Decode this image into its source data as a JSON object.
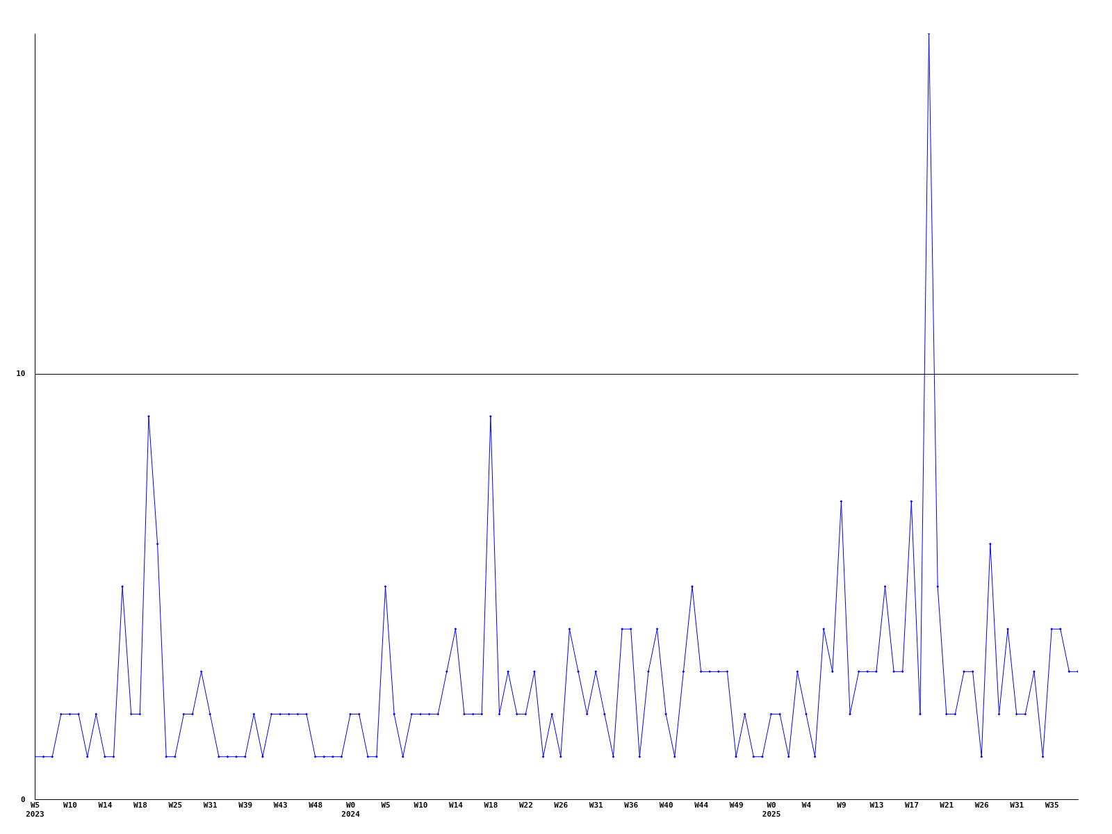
{
  "chart_data": {
    "type": "line",
    "categories": [
      "W5\n2023",
      null,
      null,
      null,
      "W10",
      null,
      null,
      null,
      "W14",
      null,
      null,
      null,
      "W18",
      null,
      null,
      null,
      "W25",
      null,
      null,
      null,
      "W31",
      null,
      null,
      null,
      "W39",
      null,
      null,
      null,
      "W43",
      null,
      null,
      null,
      "W48",
      null,
      null,
      null,
      "W0\n2024",
      null,
      null,
      null,
      "W5",
      null,
      null,
      null,
      "W10",
      null,
      null,
      null,
      "W14",
      null,
      null,
      null,
      "W18",
      null,
      null,
      null,
      "W22",
      null,
      null,
      null,
      "W26",
      null,
      null,
      null,
      "W31",
      null,
      null,
      null,
      "W36",
      null,
      null,
      null,
      "W40",
      null,
      null,
      null,
      "W44",
      null,
      null,
      null,
      "W49",
      null,
      null,
      null,
      "W0\n2025",
      null,
      null,
      null,
      "W4",
      null,
      null,
      null,
      "W9",
      null,
      null,
      null,
      "W13",
      null,
      null,
      null,
      "W17",
      null,
      null,
      null,
      "W21",
      null,
      null,
      null,
      "W26",
      null,
      null,
      null,
      "W31",
      null,
      null,
      null,
      "W35",
      null,
      null,
      null
    ],
    "series": [
      {
        "color": "#0000ff",
        "values": [
          1,
          1,
          1,
          2,
          2,
          2,
          1,
          2,
          1,
          1,
          5,
          2,
          2,
          9,
          6,
          1,
          1,
          2,
          2,
          3,
          2,
          1,
          1,
          1,
          1,
          2,
          1,
          2,
          2,
          2,
          2,
          2,
          1,
          1,
          1,
          1,
          2,
          2,
          1,
          1,
          5,
          2,
          1,
          2,
          2,
          2,
          2,
          3,
          4,
          2,
          2,
          2,
          9,
          2,
          3,
          2,
          2,
          3,
          1,
          2,
          1,
          4,
          3,
          2,
          3,
          2,
          1,
          4,
          4,
          1,
          3,
          4,
          2,
          1,
          3,
          5,
          3,
          3,
          3,
          3,
          1,
          2,
          1,
          1,
          2,
          2,
          1,
          3,
          2,
          1,
          4,
          3,
          7,
          2,
          3,
          3,
          3,
          5,
          3,
          3,
          7,
          2,
          18,
          5,
          2,
          2,
          3,
          3,
          1,
          6,
          2,
          4,
          2,
          2,
          3,
          1,
          4,
          4,
          3,
          3
        ]
      }
    ],
    "ylim": [
      0,
      18
    ],
    "yticks": [
      0,
      10
    ],
    "grid": "y",
    "marker": "diamond",
    "line_style": "solid",
    "legend": false
  }
}
